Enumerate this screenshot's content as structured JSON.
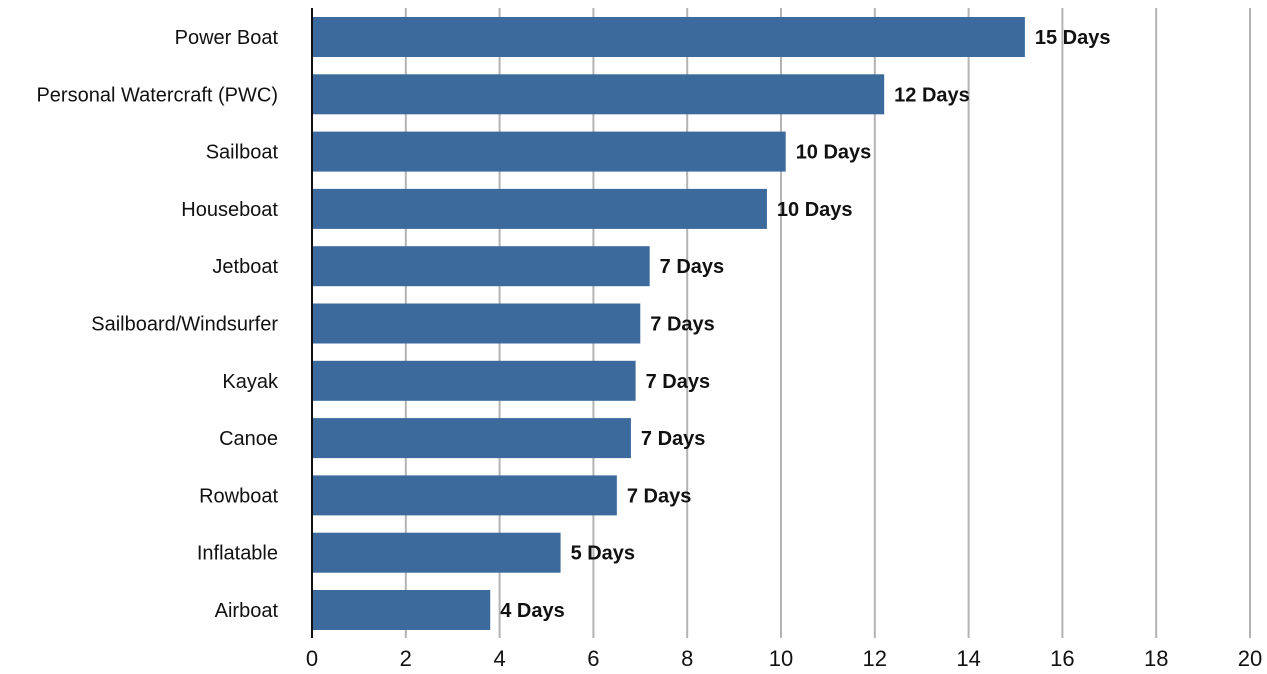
{
  "chart_data": {
    "type": "bar",
    "orientation": "horizontal",
    "title": "",
    "xlabel": "",
    "ylabel": "",
    "categories": [
      "Power Boat",
      "Personal Watercraft (PWC)",
      "Sailboat",
      "Houseboat",
      "Jetboat",
      "Sailboard/Windsurfer",
      "Kayak",
      "Canoe",
      "Rowboat",
      "Inflatable",
      "Airboat"
    ],
    "values": [
      15.2,
      12.2,
      10.1,
      9.7,
      7.2,
      7.0,
      6.9,
      6.8,
      6.5,
      5.3,
      3.8
    ],
    "data_labels": [
      "15 Days",
      "12 Days",
      "10 Days",
      "10 Days",
      "7 Days",
      "7 Days",
      "7 Days",
      "7 Days",
      "7 Days",
      "5 Days",
      "4 Days"
    ],
    "xlim": [
      0,
      20
    ],
    "xticks": [
      0,
      2,
      4,
      6,
      8,
      10,
      12,
      14,
      16,
      18,
      20
    ],
    "grid": "vertical",
    "legend": "none",
    "bar_color": "#3c6a9c"
  }
}
